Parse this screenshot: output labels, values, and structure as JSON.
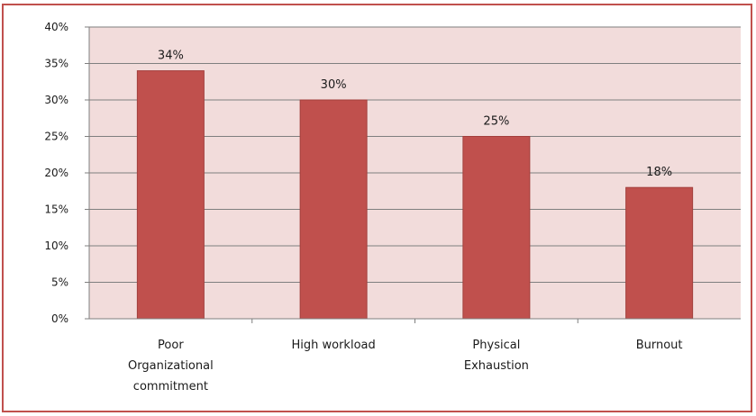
{
  "chart_data": {
    "type": "bar",
    "categories": [
      [
        "Poor",
        "Organizational",
        "commitment"
      ],
      [
        "High workload"
      ],
      [
        "Physical",
        "Exhaustion"
      ],
      [
        "Burnout"
      ]
    ],
    "values": [
      34,
      30,
      25,
      18
    ],
    "data_labels": [
      "34%",
      "30%",
      "25%",
      "18%"
    ],
    "y_ticks": [
      "0%",
      "5%",
      "10%",
      "15%",
      "20%",
      "25%",
      "30%",
      "35%",
      "40%"
    ],
    "ylim": [
      0,
      40
    ],
    "title": "",
    "xlabel": "",
    "ylabel": "",
    "grid": true,
    "legend": "none",
    "colors": {
      "bar": "#c0504d",
      "bar_edge": "#a33f3c",
      "plot_background": "#f2dcdb",
      "gridline": "#7f7f7f",
      "frame": "#c0504d"
    }
  }
}
